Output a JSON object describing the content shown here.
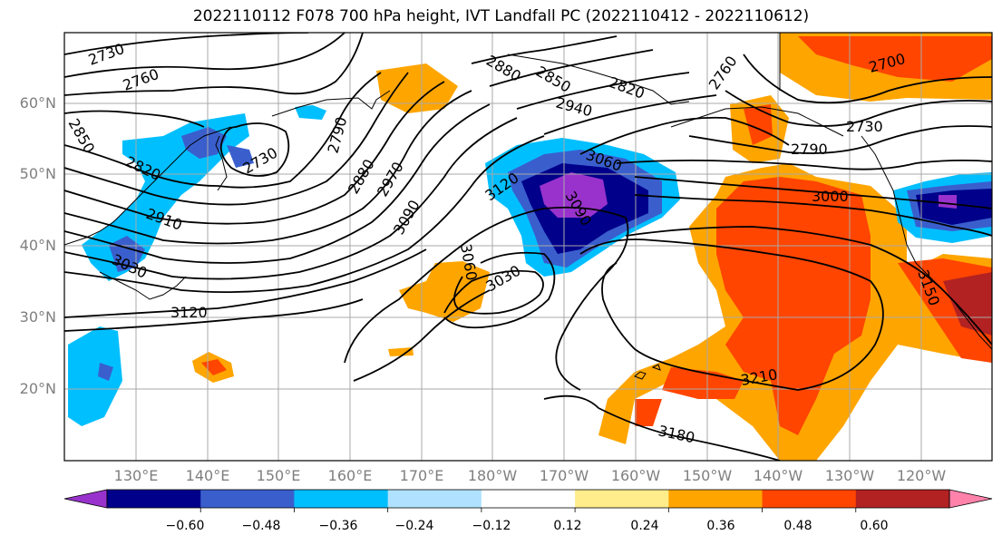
{
  "title": "2022110112 F078 700 hPa height, IVT Landfall PC (2022110412 - 2022110612)",
  "lat_labels": [
    "60°N",
    "50°N",
    "40°N",
    "30°N",
    "20°N"
  ],
  "lon_labels": [
    "130°E",
    "140°E",
    "150°E",
    "160°E",
    "170°E",
    "180°W",
    "170°W",
    "160°W",
    "150°W",
    "140°W",
    "130°W",
    "120°W"
  ],
  "colorbar": {
    "ticks": [
      "−0.60",
      "−0.48",
      "−0.36",
      "−0.24",
      "−0.12",
      "0.12",
      "0.24",
      "0.36",
      "0.48",
      "0.60"
    ],
    "colors": [
      "#9932cc",
      "#00008b",
      "#3a5fcd",
      "#00bfff",
      "#b0e2ff",
      "#ffffff",
      "#ffec8b",
      "#ffa500",
      "#ff4500",
      "#b22222",
      "#ff82ab"
    ]
  },
  "contour_labels": [
    "2730",
    "2760",
    "2880",
    "2850",
    "2820",
    "2760",
    "2700",
    "2850",
    "2940",
    "2730",
    "2790",
    "2730",
    "2790",
    "2820",
    "2910",
    "2880",
    "2970",
    "3060",
    "3120",
    "3000",
    "3090",
    "3090",
    "3030",
    "3060",
    "3030",
    "3120",
    "3150",
    "3210",
    "3180"
  ]
}
